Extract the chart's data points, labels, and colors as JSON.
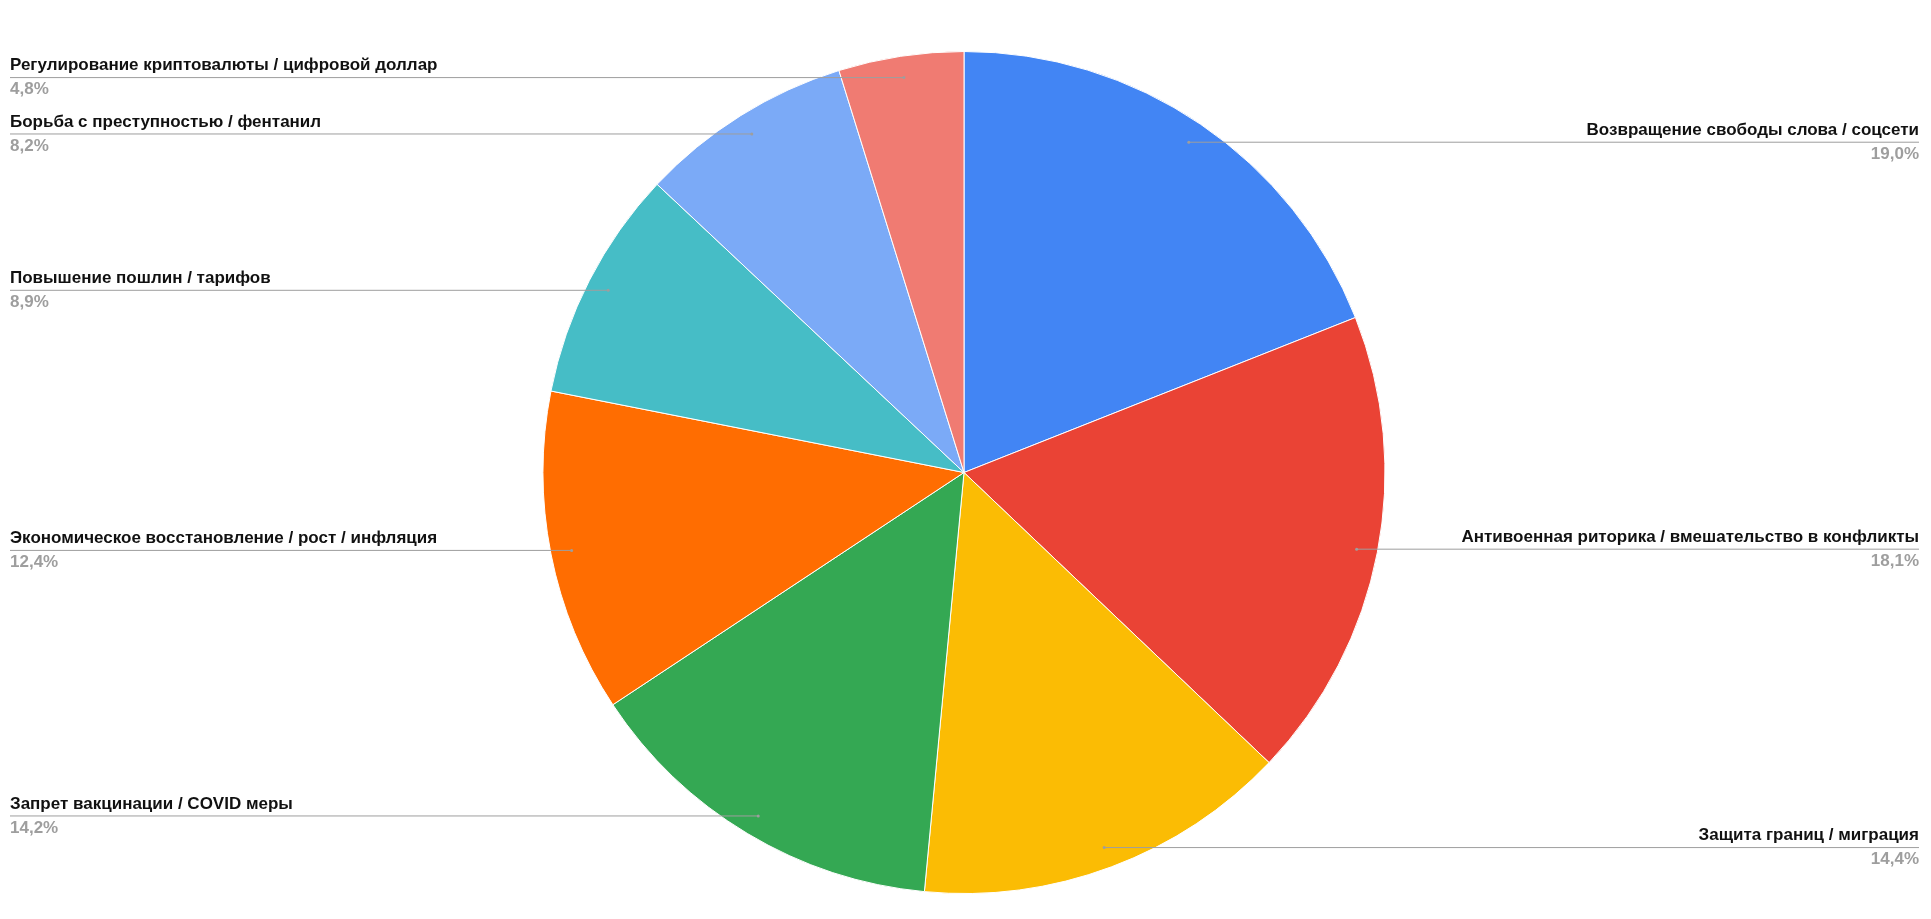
{
  "chart_data": {
    "type": "pie",
    "categories": [
      "Возвращение свободы слова / соцсети",
      "Антивоенная риторика / вмешательство в конфликты",
      "Защита границ / миграция",
      "Запрет вакцинации / COVID меры",
      "Экономическое восстановление / рост / инфляция",
      "Повышение пошлин / тарифов",
      "Борьба с преступностью / фентанил",
      "Регулирование криптовалюты / цифровой доллар"
    ],
    "values": [
      19.0,
      18.1,
      14.4,
      14.2,
      12.4,
      8.9,
      8.2,
      4.8
    ],
    "colors": [
      "#4285f4",
      "#ea4335",
      "#fbbc04",
      "#34a853",
      "#ff6d01",
      "#46bdc6",
      "#7baaf7",
      "#f07b72"
    ],
    "value_labels": [
      "19,0%",
      "18,1%",
      "14,4%",
      "14,2%",
      "12,4%",
      "8,9%",
      "8,2%",
      "4,8%"
    ],
    "legend": false
  }
}
